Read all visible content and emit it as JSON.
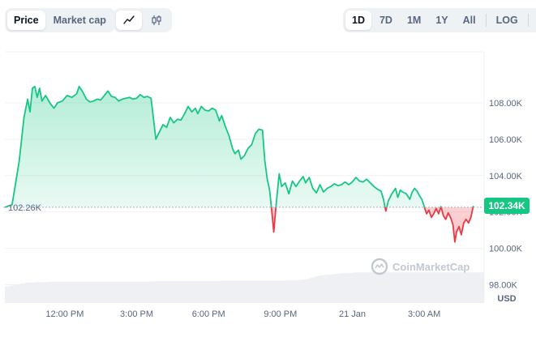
{
  "toolbar": {
    "price_label": "Price",
    "marketcap_label": "Market cap",
    "ranges": [
      "1D",
      "7D",
      "1M",
      "1Y",
      "All"
    ],
    "active_range": "1D",
    "log_label": "LOG",
    "more_label": "···"
  },
  "watermark": "CoinMarketCap",
  "open_price_label": "102.26K",
  "current_price_label": "102.34K",
  "currency": "USD",
  "colors": {
    "up": "#16c784",
    "down": "#ea3943",
    "grid": "#eff2f5"
  },
  "chart_data": {
    "type": "area",
    "title": "",
    "xlabel": "",
    "ylabel": "USD",
    "ylim": [
      97000,
      110800
    ],
    "yticks": [
      98000,
      100000,
      102000,
      104000,
      106000,
      108000
    ],
    "ytick_labels": [
      "98.00K",
      "100.00K",
      "102.00K",
      "104.00K",
      "106.00K",
      "108.00K"
    ],
    "xticks": [
      2.5,
      5.5,
      8.5,
      11.5,
      14.5,
      17.5
    ],
    "xtick_labels": [
      "12:00 PM",
      "3:00 PM",
      "6:00 PM",
      "9:00 PM",
      "21 Jan",
      "3:00 AM"
    ],
    "x_unit": "hours after 09:30",
    "baseline": 102260,
    "current": 102340,
    "series": [
      {
        "values": [
          [
            0.0,
            102260
          ],
          [
            0.3,
            102400
          ],
          [
            0.6,
            104800
          ],
          [
            0.8,
            107200
          ],
          [
            0.95,
            108200
          ],
          [
            1.05,
            107500
          ],
          [
            1.15,
            108800
          ],
          [
            1.25,
            108900
          ],
          [
            1.35,
            108300
          ],
          [
            1.45,
            108800
          ],
          [
            1.55,
            108100
          ],
          [
            1.7,
            108400
          ],
          [
            1.9,
            107950
          ],
          [
            2.05,
            107700
          ],
          [
            2.2,
            108000
          ],
          [
            2.4,
            108100
          ],
          [
            2.6,
            108400
          ],
          [
            2.8,
            108300
          ],
          [
            3.0,
            108500
          ],
          [
            3.1,
            108900
          ],
          [
            3.25,
            108600
          ],
          [
            3.4,
            108200
          ],
          [
            3.55,
            108050
          ],
          [
            3.7,
            108100
          ],
          [
            3.85,
            108200
          ],
          [
            4.0,
            108150
          ],
          [
            4.15,
            108400
          ],
          [
            4.3,
            108650
          ],
          [
            4.45,
            108350
          ],
          [
            4.6,
            108300
          ],
          [
            4.75,
            108100
          ],
          [
            4.9,
            108200
          ],
          [
            5.05,
            108250
          ],
          [
            5.2,
            108300
          ],
          [
            5.35,
            108200
          ],
          [
            5.5,
            108250
          ],
          [
            5.65,
            108450
          ],
          [
            5.8,
            108300
          ],
          [
            5.95,
            108350
          ],
          [
            6.1,
            108250
          ],
          [
            6.3,
            106000
          ],
          [
            6.45,
            106400
          ],
          [
            6.6,
            106800
          ],
          [
            6.75,
            106650
          ],
          [
            6.9,
            107200
          ],
          [
            7.05,
            106900
          ],
          [
            7.2,
            107100
          ],
          [
            7.35,
            107050
          ],
          [
            7.5,
            107400
          ],
          [
            7.65,
            107800
          ],
          [
            7.8,
            107500
          ],
          [
            7.95,
            107700
          ],
          [
            8.05,
            107400
          ],
          [
            8.2,
            107800
          ],
          [
            8.35,
            107600
          ],
          [
            8.5,
            107550
          ],
          [
            8.65,
            107700
          ],
          [
            8.8,
            107600
          ],
          [
            8.95,
            107000
          ],
          [
            9.05,
            107300
          ],
          [
            9.2,
            106700
          ],
          [
            9.35,
            106200
          ],
          [
            9.5,
            105500
          ],
          [
            9.6,
            105200
          ],
          [
            9.75,
            105400
          ],
          [
            9.85,
            104900
          ],
          [
            10.0,
            105100
          ],
          [
            10.15,
            105500
          ],
          [
            10.3,
            105700
          ],
          [
            10.45,
            106300
          ],
          [
            10.6,
            106550
          ],
          [
            10.75,
            106500
          ],
          [
            10.85,
            104800
          ],
          [
            10.95,
            103800
          ],
          [
            11.05,
            103200
          ],
          [
            11.15,
            101900
          ],
          [
            11.22,
            100900
          ],
          [
            11.32,
            102400
          ],
          [
            11.45,
            104100
          ],
          [
            11.55,
            103400
          ],
          [
            11.7,
            103600
          ],
          [
            11.85,
            103000
          ],
          [
            12.0,
            103700
          ],
          [
            12.15,
            103400
          ],
          [
            12.3,
            103700
          ],
          [
            12.45,
            103950
          ],
          [
            12.55,
            103600
          ],
          [
            12.7,
            103900
          ],
          [
            12.85,
            103300
          ],
          [
            13.0,
            103050
          ],
          [
            13.15,
            103500
          ],
          [
            13.3,
            103100
          ],
          [
            13.45,
            103300
          ],
          [
            13.6,
            103400
          ],
          [
            13.75,
            103550
          ],
          [
            13.9,
            103450
          ],
          [
            14.05,
            103500
          ],
          [
            14.2,
            103650
          ],
          [
            14.35,
            103500
          ],
          [
            14.5,
            103650
          ],
          [
            14.65,
            103900
          ],
          [
            14.8,
            103700
          ],
          [
            14.95,
            103650
          ],
          [
            15.1,
            103800
          ],
          [
            15.25,
            103600
          ],
          [
            15.4,
            103400
          ],
          [
            15.55,
            103250
          ],
          [
            15.7,
            103150
          ],
          [
            15.8,
            102700
          ],
          [
            15.9,
            102050
          ],
          [
            16.0,
            102600
          ],
          [
            16.15,
            103000
          ],
          [
            16.3,
            103300
          ],
          [
            16.4,
            102800
          ],
          [
            16.5,
            103200
          ],
          [
            16.6,
            103100
          ],
          [
            16.75,
            103000
          ],
          [
            16.9,
            102700
          ],
          [
            17.0,
            103100
          ],
          [
            17.1,
            103300
          ],
          [
            17.2,
            103150
          ],
          [
            17.3,
            102900
          ],
          [
            17.4,
            102700
          ],
          [
            17.5,
            102300
          ],
          [
            17.6,
            101900
          ],
          [
            17.7,
            102100
          ],
          [
            17.8,
            101700
          ],
          [
            17.9,
            101900
          ],
          [
            18.0,
            102200
          ],
          [
            18.1,
            101900
          ],
          [
            18.2,
            102300
          ],
          [
            18.3,
            101800
          ],
          [
            18.4,
            101600
          ],
          [
            18.5,
            101950
          ],
          [
            18.6,
            101700
          ],
          [
            18.7,
            101300
          ],
          [
            18.78,
            100350
          ],
          [
            18.85,
            100900
          ],
          [
            18.95,
            101200
          ],
          [
            19.05,
            100750
          ],
          [
            19.15,
            101400
          ],
          [
            19.25,
            101600
          ],
          [
            19.35,
            101400
          ],
          [
            19.45,
            101700
          ],
          [
            19.55,
            102340
          ]
        ]
      }
    ],
    "volume": [
      0.34,
      0.36,
      0.38,
      0.4,
      0.42,
      0.42,
      0.43,
      0.43,
      0.43,
      0.44,
      0.44,
      0.44,
      0.44,
      0.44,
      0.44,
      0.44,
      0.44,
      0.44,
      0.44,
      0.44,
      0.44,
      0.44,
      0.44,
      0.44,
      0.44,
      0.44,
      0.44,
      0.44,
      0.44,
      0.44,
      0.45,
      0.45,
      0.45,
      0.45,
      0.45,
      0.45,
      0.45,
      0.45,
      0.45,
      0.45,
      0.45,
      0.45,
      0.45,
      0.46,
      0.46,
      0.46,
      0.46,
      0.46,
      0.46,
      0.46,
      0.46,
      0.46,
      0.46,
      0.46,
      0.46,
      0.46,
      0.47,
      0.47,
      0.47,
      0.48,
      0.49,
      0.52,
      0.55,
      0.57,
      0.58,
      0.59,
      0.6,
      0.61,
      0.62,
      0.62,
      0.63,
      0.63,
      0.63,
      0.63,
      0.63,
      0.63,
      0.63,
      0.63,
      0.63,
      0.63,
      0.63,
      0.63,
      0.63,
      0.63,
      0.63,
      0.63,
      0.63,
      0.63,
      0.63,
      0.63,
      0.63,
      0.63,
      0.63,
      0.63,
      0.63,
      0.63
    ]
  }
}
